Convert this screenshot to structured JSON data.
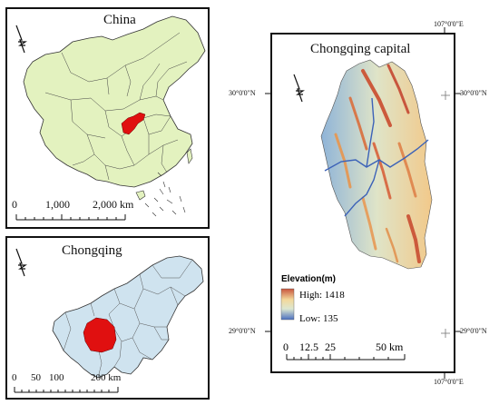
{
  "china": {
    "title": "China",
    "scale_labels": [
      "0",
      "1,000",
      "2,000 km"
    ]
  },
  "chongqing": {
    "title": "Chongqing",
    "scale_labels": [
      "0",
      "50",
      "100",
      "200 km"
    ]
  },
  "capital": {
    "title": "Chongqing capital",
    "lon_labels": [
      "107°0'0\"E",
      "107°0'0\"E"
    ],
    "lat_labels": [
      "30°0'0\"N",
      "30°0'0\"N",
      "29°0'0\"N",
      "29°0'0\"N"
    ],
    "legend": {
      "title": "Elevation(m)",
      "high_label": "High: 1418",
      "low_label": "Low:  135",
      "high_color": "#c8553d",
      "low_color": "#4a6fc0"
    },
    "scale_labels": [
      "0",
      "12.5",
      "25",
      "50 km"
    ]
  },
  "colors": {
    "china_fill": "#e3f2bf",
    "chongqing_fill": "#cfe3ef",
    "highlight": "#e01010"
  },
  "icons": [
    "north-arrow-icon"
  ]
}
